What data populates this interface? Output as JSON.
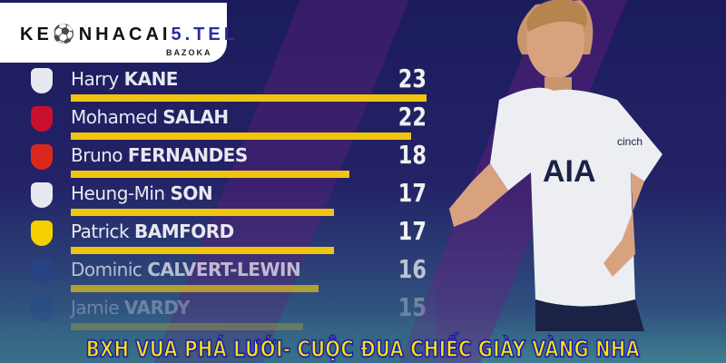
{
  "logo": {
    "main_prefix": "KE",
    "main_mid": "NHACAI",
    "main_accent": "5.TEL",
    "sub": "BAZOKA"
  },
  "scorers": [
    {
      "first": "Harry",
      "last": "KANE",
      "goals": 23,
      "club_color": "#e8e8f0"
    },
    {
      "first": "Mohamed",
      "last": "SALAH",
      "goals": 22,
      "club_color": "#c8102e"
    },
    {
      "first": "Bruno",
      "last": "FERNANDES",
      "goals": 18,
      "club_color": "#da291c"
    },
    {
      "first": "Heung-Min",
      "last": "SON",
      "goals": 17,
      "club_color": "#e8e8f0"
    },
    {
      "first": "Patrick",
      "last": "BAMFORD",
      "goals": 17,
      "club_color": "#f5d000"
    },
    {
      "first": "Dominic",
      "last": "CALVERT-LEWIN",
      "goals": 16,
      "club_color": "#274488"
    },
    {
      "first": "Jamie",
      "last": "VARDY",
      "goals": 15,
      "club_color": "#1d428a"
    }
  ],
  "headline": "BXH VUA PHÁ LƯỚI- CUỘC ĐUA CHIẾC GIÀY VÀNG NHA",
  "shirt": {
    "sponsor": "AIA",
    "sleeve": "cinch"
  },
  "colors": {
    "bar": "#f1c40f",
    "headline_fill": "#ffe600",
    "headline_outline": "#1a1ab0"
  }
}
